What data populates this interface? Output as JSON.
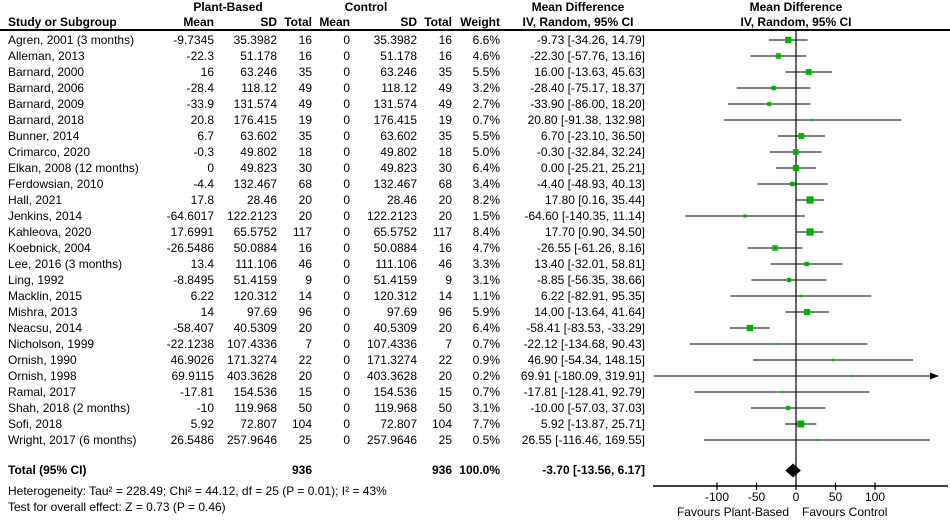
{
  "headers": {
    "study": "Study or Subgroup",
    "group1": "Plant-Based",
    "group2": "Control",
    "mean": "Mean",
    "sd": "SD",
    "total": "Total",
    "weight": "Weight",
    "effect_title": "Mean Difference",
    "effect_sub": "IV, Random, 95% CI",
    "plot_title": "Mean Difference",
    "plot_sub": "IV, Random, 95% CI"
  },
  "footnotes": {
    "heterogeneity": "Heterogeneity: Tau² = 228.49; Chi² = 44.12, df = 25 (P = 0.01); I² = 43%",
    "overall_effect": "Test for overall effect: Z = 0.73 (P = 0.46)"
  },
  "colors": {
    "marker": "#00b300",
    "line": "#000000",
    "diamond": "#000000"
  },
  "chart_data": {
    "type": "forest",
    "title": "Mean Difference — IV, Random, 95% CI",
    "x_ticks": [
      -100,
      -50,
      0,
      50,
      100
    ],
    "x_axis_left_label": "Favours Plant-Based",
    "x_axis_right_label": "Favours Control",
    "x_plot_range": [
      -180,
      185
    ],
    "studies": [
      {
        "study": "Agren, 2001 (3 months)",
        "pb_mean": "-9.7345",
        "pb_sd": "35.3982",
        "pb_total": "16",
        "c_mean": "0",
        "c_sd": "35.3982",
        "c_total": "16",
        "weight": "6.6%",
        "md": -9.73,
        "ci_low": -34.26,
        "ci_high": 14.79
      },
      {
        "study": "Alleman, 2013",
        "pb_mean": "-22.3",
        "pb_sd": "51.178",
        "pb_total": "16",
        "c_mean": "0",
        "c_sd": "51.178",
        "c_total": "16",
        "weight": "4.6%",
        "md": -22.3,
        "ci_low": -57.76,
        "ci_high": 13.16
      },
      {
        "study": "Barnard, 2000",
        "pb_mean": "16",
        "pb_sd": "63.246",
        "pb_total": "35",
        "c_mean": "0",
        "c_sd": "63.246",
        "c_total": "35",
        "weight": "5.5%",
        "md": 16.0,
        "ci_low": -13.63,
        "ci_high": 45.63
      },
      {
        "study": "Barnard, 2006",
        "pb_mean": "-28.4",
        "pb_sd": "118.12",
        "pb_total": "49",
        "c_mean": "0",
        "c_sd": "118.12",
        "c_total": "49",
        "weight": "3.2%",
        "md": -28.4,
        "ci_low": -75.17,
        "ci_high": 18.37
      },
      {
        "study": "Barnard, 2009",
        "pb_mean": "-33.9",
        "pb_sd": "131.574",
        "pb_total": "49",
        "c_mean": "0",
        "c_sd": "131.574",
        "c_total": "49",
        "weight": "2.7%",
        "md": -33.9,
        "ci_low": -86.0,
        "ci_high": 18.2
      },
      {
        "study": "Barnard, 2018",
        "pb_mean": "20.8",
        "pb_sd": "176.415",
        "pb_total": "19",
        "c_mean": "0",
        "c_sd": "176.415",
        "c_total": "19",
        "weight": "0.7%",
        "md": 20.8,
        "ci_low": -91.38,
        "ci_high": 132.98
      },
      {
        "study": "Bunner, 2014",
        "pb_mean": "6.7",
        "pb_sd": "63.602",
        "pb_total": "35",
        "c_mean": "0",
        "c_sd": "63.602",
        "c_total": "35",
        "weight": "5.5%",
        "md": 6.7,
        "ci_low": -23.1,
        "ci_high": 36.5
      },
      {
        "study": "Crimarco, 2020",
        "pb_mean": "-0.3",
        "pb_sd": "49.802",
        "pb_total": "18",
        "c_mean": "0",
        "c_sd": "49.802",
        "c_total": "18",
        "weight": "5.0%",
        "md": -0.3,
        "ci_low": -32.84,
        "ci_high": 32.24
      },
      {
        "study": "Elkan, 2008 (12 months)",
        "pb_mean": "0",
        "pb_sd": "49.823",
        "pb_total": "30",
        "c_mean": "0",
        "c_sd": "49.823",
        "c_total": "30",
        "weight": "6.4%",
        "md": 0.0,
        "ci_low": -25.21,
        "ci_high": 25.21
      },
      {
        "study": "Ferdowsian, 2010",
        "pb_mean": "-4.4",
        "pb_sd": "132.467",
        "pb_total": "68",
        "c_mean": "0",
        "c_sd": "132.467",
        "c_total": "68",
        "weight": "3.4%",
        "md": -4.4,
        "ci_low": -48.93,
        "ci_high": 40.13
      },
      {
        "study": "Hall, 2021",
        "pb_mean": "17.8",
        "pb_sd": "28.46",
        "pb_total": "20",
        "c_mean": "0",
        "c_sd": "28.46",
        "c_total": "20",
        "weight": "8.2%",
        "md": 17.8,
        "ci_low": 0.16,
        "ci_high": 35.44
      },
      {
        "study": "Jenkins, 2014",
        "pb_mean": "-64.6017",
        "pb_sd": "122.2123",
        "pb_total": "20",
        "c_mean": "0",
        "c_sd": "122.2123",
        "c_total": "20",
        "weight": "1.5%",
        "md": -64.6,
        "ci_low": -140.35,
        "ci_high": 11.14
      },
      {
        "study": "Kahleova, 2020",
        "pb_mean": "17.6991",
        "pb_sd": "65.5752",
        "pb_total": "117",
        "c_mean": "0",
        "c_sd": "65.5752",
        "c_total": "117",
        "weight": "8.4%",
        "md": 17.7,
        "ci_low": 0.9,
        "ci_high": 34.5
      },
      {
        "study": "Koebnick, 2004",
        "pb_mean": "-26.5486",
        "pb_sd": "50.0884",
        "pb_total": "16",
        "c_mean": "0",
        "c_sd": "50.0884",
        "c_total": "16",
        "weight": "4.7%",
        "md": -26.55,
        "ci_low": -61.26,
        "ci_high": 8.16
      },
      {
        "study": "Lee, 2016 (3 months)",
        "pb_mean": "13.4",
        "pb_sd": "111.106",
        "pb_total": "46",
        "c_mean": "0",
        "c_sd": "111.106",
        "c_total": "46",
        "weight": "3.3%",
        "md": 13.4,
        "ci_low": -32.01,
        "ci_high": 58.81
      },
      {
        "study": "Ling, 1992",
        "pb_mean": "-8.8495",
        "pb_sd": "51.4159",
        "pb_total": "9",
        "c_mean": "0",
        "c_sd": "51.4159",
        "c_total": "9",
        "weight": "3.1%",
        "md": -8.85,
        "ci_low": -56.35,
        "ci_high": 38.66
      },
      {
        "study": "Macklin, 2015",
        "pb_mean": "6.22",
        "pb_sd": "120.312",
        "pb_total": "14",
        "c_mean": "0",
        "c_sd": "120.312",
        "c_total": "14",
        "weight": "1.1%",
        "md": 6.22,
        "ci_low": -82.91,
        "ci_high": 95.35
      },
      {
        "study": "Mishra, 2013",
        "pb_mean": "14",
        "pb_sd": "97.69",
        "pb_total": "96",
        "c_mean": "0",
        "c_sd": "97.69",
        "c_total": "96",
        "weight": "5.9%",
        "md": 14.0,
        "ci_low": -13.64,
        "ci_high": 41.64
      },
      {
        "study": "Neacsu, 2014",
        "pb_mean": "-58.407",
        "pb_sd": "40.5309",
        "pb_total": "20",
        "c_mean": "0",
        "c_sd": "40.5309",
        "c_total": "20",
        "weight": "6.4%",
        "md": -58.41,
        "ci_low": -83.53,
        "ci_high": -33.29
      },
      {
        "study": "Nicholson, 1999",
        "pb_mean": "-22.1238",
        "pb_sd": "107.4336",
        "pb_total": "7",
        "c_mean": "0",
        "c_sd": "107.4336",
        "c_total": "7",
        "weight": "0.7%",
        "md": -22.12,
        "ci_low": -134.68,
        "ci_high": 90.43
      },
      {
        "study": "Ornish, 1990",
        "pb_mean": "46.9026",
        "pb_sd": "171.3274",
        "pb_total": "22",
        "c_mean": "0",
        "c_sd": "171.3274",
        "c_total": "22",
        "weight": "0.9%",
        "md": 46.9,
        "ci_low": -54.34,
        "ci_high": 148.15
      },
      {
        "study": "Ornish, 1998",
        "pb_mean": "69.9115",
        "pb_sd": "403.3628",
        "pb_total": "20",
        "c_mean": "0",
        "c_sd": "403.3628",
        "c_total": "20",
        "weight": "0.2%",
        "md": 69.91,
        "ci_low": -180.09,
        "ci_high": 319.91
      },
      {
        "study": "Ramal, 2017",
        "pb_mean": "-17.81",
        "pb_sd": "154.536",
        "pb_total": "15",
        "c_mean": "0",
        "c_sd": "154.536",
        "c_total": "15",
        "weight": "0.7%",
        "md": -17.81,
        "ci_low": -128.41,
        "ci_high": 92.79
      },
      {
        "study": "Shah, 2018 (2 months)",
        "pb_mean": "-10",
        "pb_sd": "119.968",
        "pb_total": "50",
        "c_mean": "0",
        "c_sd": "119.968",
        "c_total": "50",
        "weight": "3.1%",
        "md": -10.0,
        "ci_low": -57.03,
        "ci_high": 37.03
      },
      {
        "study": "Sofi, 2018",
        "pb_mean": "5.92",
        "pb_sd": "72.807",
        "pb_total": "104",
        "c_mean": "0",
        "c_sd": "72.807",
        "c_total": "104",
        "weight": "7.7%",
        "md": 5.92,
        "ci_low": -13.87,
        "ci_high": 25.71
      },
      {
        "study": "Wright, 2017 (6 months)",
        "pb_mean": "26.5486",
        "pb_sd": "257.9646",
        "pb_total": "25",
        "c_mean": "0",
        "c_sd": "257.9646",
        "c_total": "25",
        "weight": "0.5%",
        "md": 26.55,
        "ci_low": -116.46,
        "ci_high": 169.55
      }
    ],
    "total": {
      "label": "Total (95% CI)",
      "pb_total": "936",
      "c_total": "936",
      "weight": "100.0%",
      "md": -3.7,
      "ci_low": -13.56,
      "ci_high": 6.17,
      "md_label": "-3.70 [-13.56, 6.17]"
    }
  }
}
